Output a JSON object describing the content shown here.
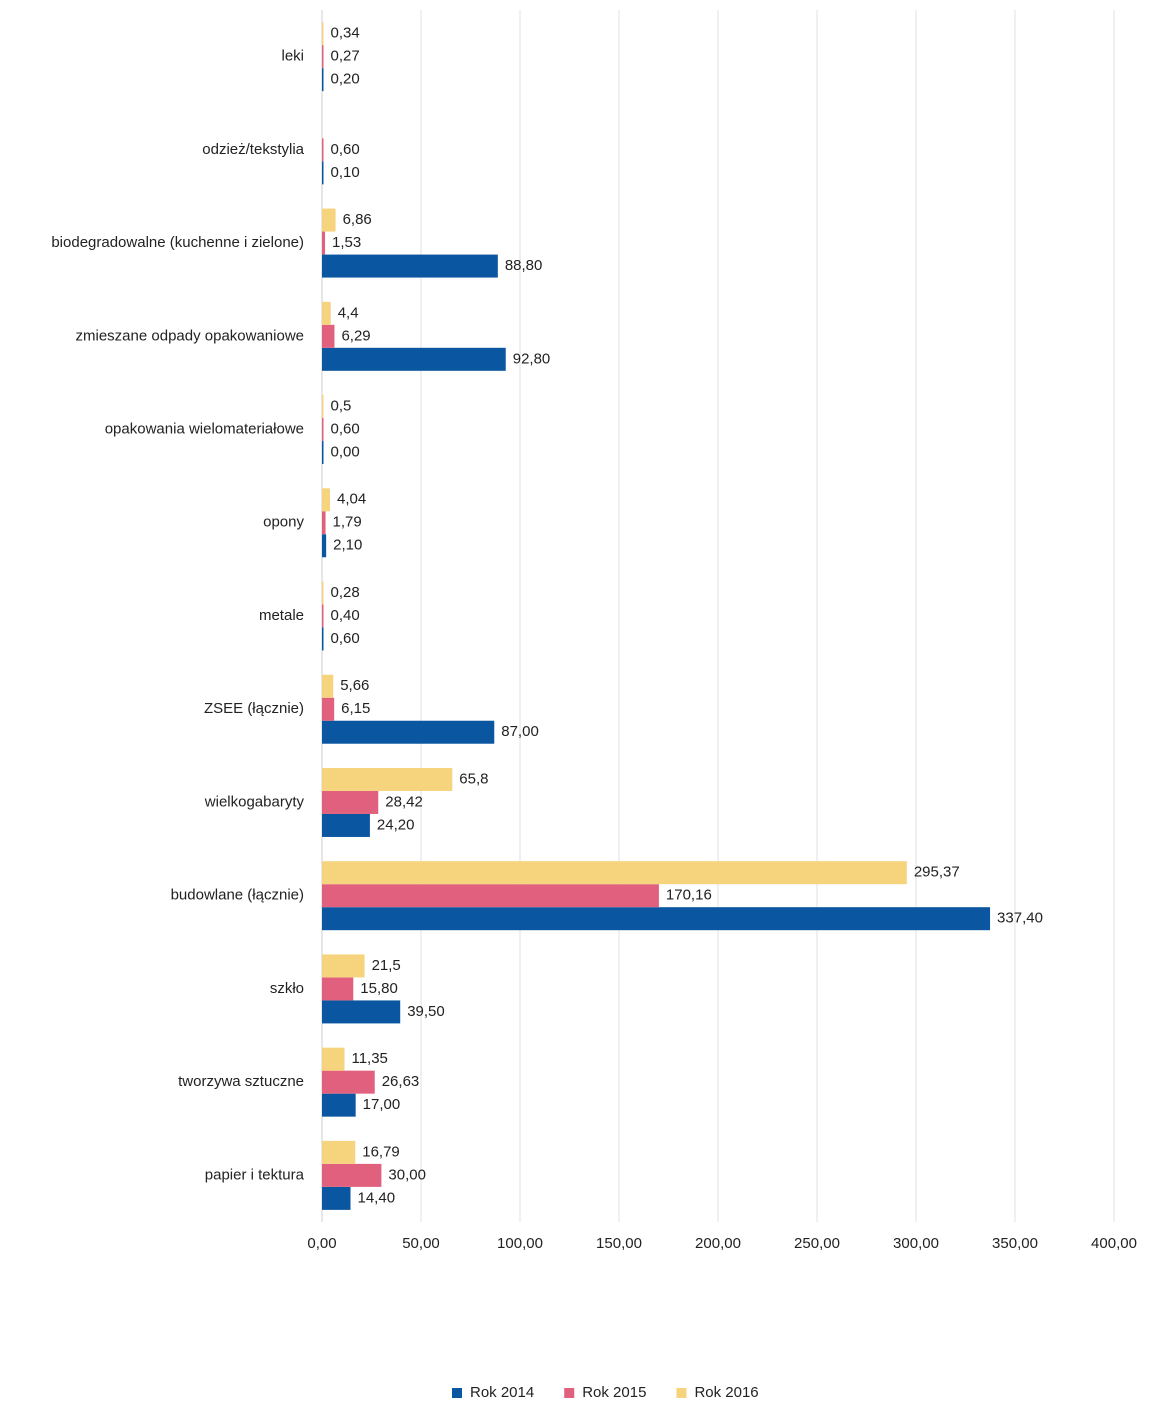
{
  "chart_data": {
    "type": "bar",
    "orientation": "horizontal",
    "categories": [
      "leki",
      "odzież/tekstylia",
      "biodegradowalne (kuchenne i zielone)",
      "zmieszane odpady opakowaniowe",
      "opakowania wielomateriałowe",
      "opony",
      "metale",
      "ZSEE (łącznie)",
      "wielkogabaryty",
      "budowlane (łącznie)",
      "szkło",
      "tworzywa sztuczne",
      "papier i tektura"
    ],
    "series": [
      {
        "name": "Rok 2014",
        "color": "#0b56a0",
        "values": [
          0.2,
          0.1,
          88.8,
          92.8,
          0,
          2.1,
          0.6,
          87,
          24.2,
          337.4,
          39.5,
          17,
          14.4
        ],
        "value_labels": [
          "0,20",
          "0,10",
          "88,80",
          "92,80",
          "0,00",
          "2,10",
          "0,60",
          "87,00",
          "24,20",
          "337,40",
          "39,50",
          "17,00",
          "14,40"
        ]
      },
      {
        "name": "Rok 2015",
        "color": "#e0607e",
        "values": [
          0.27,
          0.6,
          1.53,
          6.29,
          0.6,
          1.79,
          0.4,
          6.15,
          28.42,
          170.16,
          15.8,
          26.63,
          30
        ],
        "value_labels": [
          "0,27",
          "0,60",
          "1,53",
          "6,29",
          "0,60",
          "1,79",
          "0,40",
          "6,15",
          "28,42",
          "170,16",
          "15,80",
          "26,63",
          "30,00"
        ]
      },
      {
        "name": "Rok 2016",
        "color": "#f6d47e",
        "values": [
          0.34,
          null,
          6.86,
          4.4,
          0.5,
          4.04,
          0.28,
          5.66,
          65.8,
          295.37,
          21.5,
          11.35,
          16.79
        ],
        "value_labels": [
          "0,34",
          null,
          "6,86",
          "4,4",
          "0,5",
          "4,04",
          "0,28",
          "5,66",
          "65,8",
          "295,37",
          "21,5",
          "11,35",
          "16,79"
        ]
      }
    ],
    "xlim": [
      0,
      400
    ],
    "xticks": [
      {
        "value": 0,
        "label": "0,00"
      },
      {
        "value": 50,
        "label": "50,00"
      },
      {
        "value": 100,
        "label": "100,00"
      },
      {
        "value": 150,
        "label": "150,00"
      },
      {
        "value": 200,
        "label": "200,00"
      },
      {
        "value": 250,
        "label": "250,00"
      },
      {
        "value": 300,
        "label": "300,00"
      },
      {
        "value": 350,
        "label": "350,00"
      },
      {
        "value": 400,
        "label": "400,00"
      }
    ],
    "grid": true,
    "legend": "bottom"
  }
}
